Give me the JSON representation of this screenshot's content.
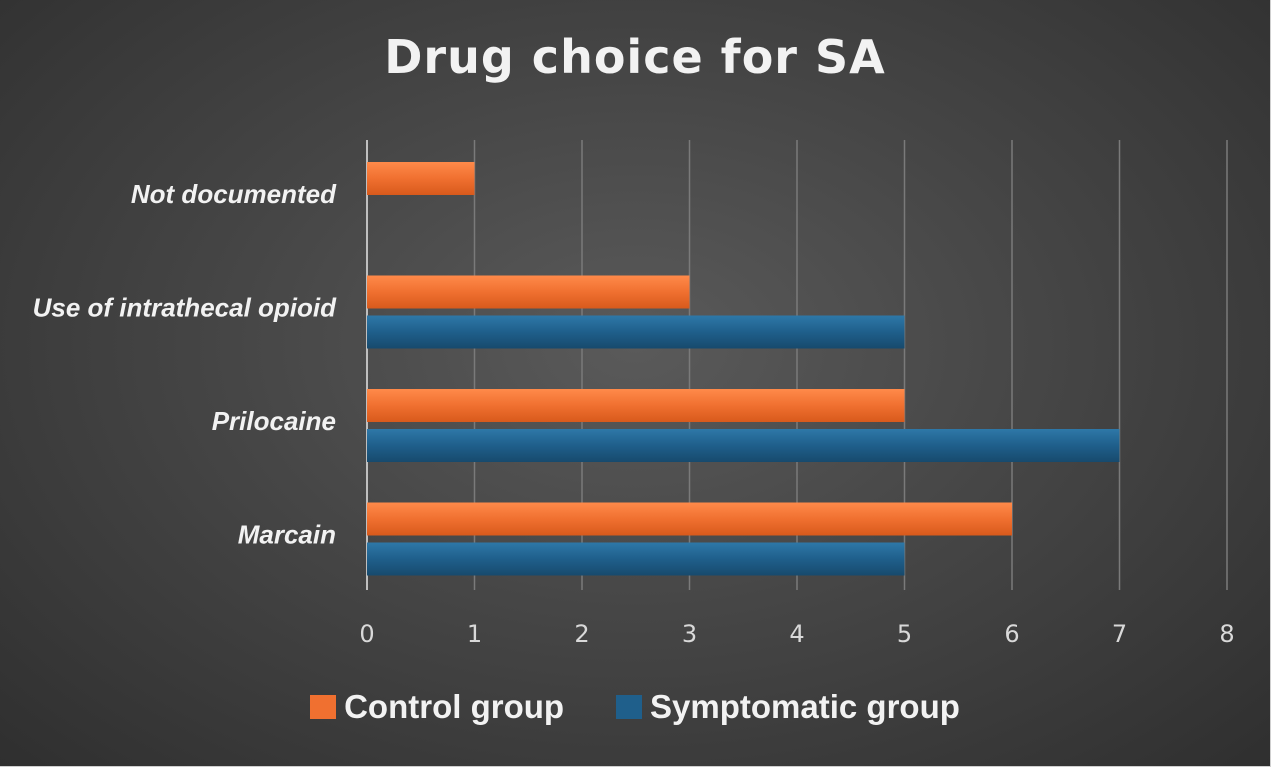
{
  "chart_data": {
    "type": "bar",
    "orientation": "horizontal",
    "title": "Drug choice for SA",
    "categories": [
      "Not documented",
      "Use of intrathecal opioid",
      "Prilocaine",
      "Marcain"
    ],
    "series": [
      {
        "name": "Control group",
        "color": "#f07030",
        "values": [
          1,
          3,
          5,
          6
        ]
      },
      {
        "name": "Symptomatic group",
        "color": "#1f5f8b",
        "values": [
          null,
          5,
          7,
          5
        ]
      }
    ],
    "xlim": [
      0,
      8
    ],
    "xticks": [
      "0",
      "1",
      "2",
      "3",
      "4",
      "5",
      "6",
      "7",
      "8"
    ],
    "grid": true,
    "legend_position": "bottom"
  }
}
